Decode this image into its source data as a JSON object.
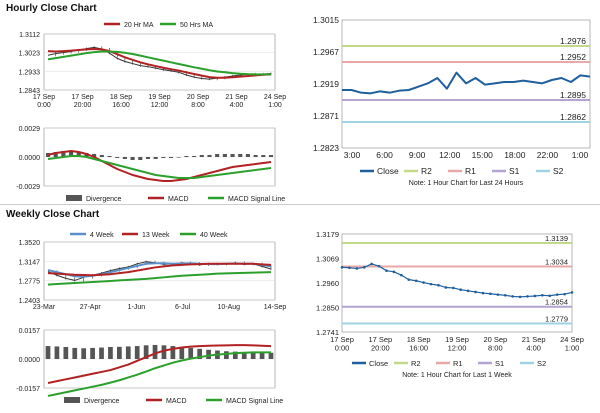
{
  "sections": {
    "hourly_title": "Hourly Close Chart",
    "weekly_title": "Weekly Close Chart"
  },
  "colors": {
    "ma_red": "#b22222",
    "ma_green": "#2ca02c",
    "ma_blue": "#5b8fc8",
    "hist": "#555555",
    "close_blue": "#1f5f9e",
    "r2": "#c3d98a",
    "r1": "#e9a7a7",
    "s1": "#b3a4d1",
    "s2": "#9fd3e3"
  },
  "chart_data": [
    {
      "id": "hourly_price",
      "type": "line",
      "legend": [
        "20 Hr MA",
        "50 Hrs MA"
      ],
      "legend_placement": "top",
      "ylim": [
        1.2843,
        1.3112
      ],
      "y_ticks": [
        "1.3112",
        "1.3023",
        "1.2933",
        "1.2843"
      ],
      "x_ticks": [
        "17 Sep\n0:00",
        "17 Sep\n20:00",
        "18 Sep\n16:00",
        "19 Sep\n12:00",
        "20 Sep\n8:00",
        "21 Sep\n4:00",
        "24 Sep\n1:00"
      ],
      "series": [
        {
          "name": "Close",
          "values": [
            1.301,
            1.3018,
            1.3023,
            1.3028,
            1.3035,
            1.3042,
            1.3048,
            1.304,
            1.302,
            1.2995,
            1.298,
            1.297,
            1.296,
            1.2955,
            1.2948,
            1.294,
            1.2935,
            1.2928,
            1.2915,
            1.2905,
            1.2898,
            1.2895,
            1.29,
            1.2905,
            1.291,
            1.2915,
            1.2918,
            1.292,
            1.292,
            1.2922
          ]
        },
        {
          "name": "20 Hr MA",
          "values": [
            1.303,
            1.3028,
            1.303,
            1.3032,
            1.3035,
            1.3038,
            1.304,
            1.3038,
            1.303,
            1.3015,
            1.3,
            1.2988,
            1.2976,
            1.2966,
            1.2958,
            1.295,
            1.2943,
            1.2936,
            1.2928,
            1.292,
            1.2912,
            1.2905,
            1.2902,
            1.2902,
            1.2904,
            1.2907,
            1.291,
            1.2913,
            1.2916,
            1.2918
          ]
        },
        {
          "name": "50 Hrs MA",
          "values": [
            1.299,
            1.2996,
            1.3002,
            1.3008,
            1.3014,
            1.302,
            1.3025,
            1.3028,
            1.3028,
            1.3026,
            1.3022,
            1.3016,
            1.3008,
            1.3,
            1.2992,
            1.2984,
            1.2976,
            1.2968,
            1.296,
            1.2952,
            1.2945,
            1.2938,
            1.2932,
            1.2928,
            1.2924,
            1.2921,
            1.2919,
            1.2918,
            1.2918,
            1.2918
          ]
        }
      ]
    },
    {
      "id": "hourly_macd",
      "type": "bar",
      "legend": [
        "Divergence",
        "MACD",
        "MACD Signal Line"
      ],
      "legend_placement": "bottom",
      "ylim": [
        -0.0029,
        0.0029
      ],
      "y_ticks": [
        "0.0029",
        "0.0000",
        "-0.0029"
      ],
      "series": [
        {
          "name": "Divergence",
          "values": [
            0.0004,
            0.0005,
            0.0006,
            0.0006,
            0.0005,
            0.0004,
            0.0003,
            0.0002,
            0.0001,
            -0.0001,
            -0.0002,
            -0.0003,
            -0.0003,
            -0.0002,
            -0.0002,
            -0.0001,
            -0.0001,
            0.0,
            0.0001,
            0.0001,
            0.0002,
            0.0002,
            0.0003,
            0.0003,
            0.0003,
            0.0003,
            0.0003,
            0.0002,
            0.0002,
            0.0002
          ]
        },
        {
          "name": "MACD",
          "values": [
            0.0002,
            0.0004,
            0.0005,
            0.0006,
            0.0005,
            0.0003,
            0.0,
            -0.0004,
            -0.0008,
            -0.0012,
            -0.0015,
            -0.0018,
            -0.002,
            -0.0022,
            -0.0023,
            -0.0024,
            -0.0024,
            -0.0023,
            -0.0022,
            -0.002,
            -0.0018,
            -0.0016,
            -0.0014,
            -0.0012,
            -0.001,
            -0.0009,
            -0.0008,
            -0.0007,
            -0.0006,
            -0.0005
          ]
        },
        {
          "name": "MACD Signal Line",
          "values": [
            -0.0002,
            -0.0001,
            0.0,
            0.0001,
            0.0001,
            0.0,
            -0.0002,
            -0.0004,
            -0.0006,
            -0.0008,
            -0.001,
            -0.0012,
            -0.0014,
            -0.0016,
            -0.0018,
            -0.0019,
            -0.002,
            -0.0021,
            -0.0021,
            -0.0021,
            -0.002,
            -0.0019,
            -0.0018,
            -0.0017,
            -0.0016,
            -0.0015,
            -0.0014,
            -0.0013,
            -0.0012,
            -0.0011
          ]
        }
      ]
    },
    {
      "id": "hourly_pivot",
      "type": "line",
      "ylim": [
        1.2823,
        1.3015
      ],
      "y_ticks": [
        "1.3015",
        "1.2967",
        "1.2919",
        "1.2871",
        "1.2823"
      ],
      "x_ticks": [
        "3:00",
        "6:00",
        "9:00",
        "12:00",
        "15:00",
        "18:00",
        "22:00",
        "1:00"
      ],
      "levels": [
        {
          "name": "R2",
          "value": 1.2976,
          "label": "1.2976"
        },
        {
          "name": "R1",
          "value": 1.2952,
          "label": "1.2952"
        },
        {
          "name": "S1",
          "value": 1.2895,
          "label": "1.2895"
        },
        {
          "name": "S2",
          "value": 1.2862,
          "label": "1.2862"
        }
      ],
      "series": [
        {
          "name": "Close",
          "values": [
            1.291,
            1.291,
            1.2906,
            1.2905,
            1.2908,
            1.2906,
            1.2909,
            1.291,
            1.2915,
            1.292,
            1.2928,
            1.2912,
            1.2936,
            1.292,
            1.2928,
            1.2918,
            1.292,
            1.2922,
            1.2922,
            1.2924,
            1.2922,
            1.292,
            1.2925,
            1.2928,
            1.2922,
            1.2932,
            1.293
          ]
        }
      ],
      "legend": [
        "Close",
        "R2",
        "R1",
        "S1",
        "S2"
      ],
      "note": "Note: 1 Hour Chart for Last 24 Hours"
    },
    {
      "id": "weekly_price",
      "type": "line",
      "legend": [
        "4 Week",
        "13 Week",
        "40 Week"
      ],
      "legend_placement": "top",
      "ylim": [
        1.2403,
        1.352
      ],
      "y_ticks": [
        "1.3520",
        "1.3147",
        "1.2775",
        "1.2403"
      ],
      "x_ticks": [
        "23-Mar",
        "27-Apr",
        "1-Jun",
        "6-Jul",
        "10-Aug",
        "14-Sep"
      ],
      "series": [
        {
          "name": "Close",
          "values": [
            1.295,
            1.288,
            1.282,
            1.278,
            1.284,
            1.288,
            1.292,
            1.297,
            1.301,
            1.304,
            1.31,
            1.314,
            1.312,
            1.309,
            1.31,
            1.312,
            1.311,
            1.308,
            1.31,
            1.309,
            1.31,
            1.312,
            1.309,
            1.31,
            1.305,
            1.3
          ]
        },
        {
          "name": "4 Week",
          "values": [
            1.298,
            1.294,
            1.29,
            1.286,
            1.285,
            1.287,
            1.29,
            1.294,
            1.298,
            1.302,
            1.306,
            1.31,
            1.311,
            1.311,
            1.31,
            1.3105,
            1.311,
            1.31,
            1.3095,
            1.3095,
            1.31,
            1.3105,
            1.31,
            1.31,
            1.308,
            1.305
          ]
        },
        {
          "name": "13 Week",
          "values": [
            1.292,
            1.291,
            1.29,
            1.289,
            1.2885,
            1.288,
            1.289,
            1.29,
            1.292,
            1.294,
            1.297,
            1.3,
            1.303,
            1.305,
            1.307,
            1.308,
            1.309,
            1.3095,
            1.31,
            1.31,
            1.31,
            1.31,
            1.31,
            1.31,
            1.309,
            1.308
          ]
        },
        {
          "name": "40 Week",
          "values": [
            1.27,
            1.271,
            1.272,
            1.273,
            1.274,
            1.275,
            1.276,
            1.277,
            1.278,
            1.279,
            1.28,
            1.281,
            1.2825,
            1.284,
            1.2855,
            1.287,
            1.288,
            1.289,
            1.29,
            1.291,
            1.2915,
            1.292,
            1.2925,
            1.293,
            1.2935,
            1.294
          ]
        }
      ]
    },
    {
      "id": "weekly_macd",
      "type": "bar",
      "legend": [
        "Divergence",
        "MACD",
        "MACD Signal Line"
      ],
      "legend_placement": "bottom",
      "ylim": [
        -0.0157,
        0.0157
      ],
      "y_ticks": [
        "0.0157",
        "0.0000",
        "-0.0157"
      ],
      "series": [
        {
          "name": "Divergence",
          "values": [
            0.007,
            0.0068,
            0.0065,
            0.006,
            0.0058,
            0.006,
            0.0062,
            0.0065,
            0.0066,
            0.0068,
            0.007,
            0.0074,
            0.0076,
            0.0074,
            0.007,
            0.0065,
            0.006,
            0.0055,
            0.005,
            0.0046,
            0.0042,
            0.004,
            0.0038,
            0.0036,
            0.0035,
            0.0034
          ]
        },
        {
          "name": "MACD",
          "values": [
            -0.013,
            -0.012,
            -0.011,
            -0.01,
            -0.009,
            -0.008,
            -0.007,
            -0.006,
            -0.0045,
            -0.003,
            -0.001,
            0.001,
            0.003,
            0.0045,
            0.0055,
            0.0062,
            0.0067,
            0.007,
            0.0072,
            0.0073,
            0.0074,
            0.0075,
            0.0075,
            0.0074,
            0.0072,
            0.007
          ]
        },
        {
          "name": "MACD Signal Line",
          "values": [
            -0.02,
            -0.019,
            -0.018,
            -0.017,
            -0.016,
            -0.015,
            -0.014,
            -0.0128,
            -0.0115,
            -0.01,
            -0.0085,
            -0.0068,
            -0.005,
            -0.0035,
            -0.002,
            -0.0008,
            0.0002,
            0.001,
            0.0018,
            0.0024,
            0.0028,
            0.0032,
            0.0034,
            0.0036,
            0.0036,
            0.0036
          ]
        }
      ]
    },
    {
      "id": "weekly_pivot",
      "type": "line",
      "ylim": [
        1.2741,
        1.3179
      ],
      "y_ticks": [
        "1.3179",
        "1.3069",
        "1.2960",
        "1.2850",
        "1.2741"
      ],
      "x_ticks": [
        "17 Sep\n0:00",
        "17 Sep\n20:00",
        "18 Sep\n16:00",
        "19 Sep\n12:00",
        "20 Sep\n8:00",
        "21 Sep\n4:00",
        "24 Sep\n1:00"
      ],
      "levels": [
        {
          "name": "R2",
          "value": 1.3139,
          "label": "1.3139"
        },
        {
          "name": "R1",
          "value": 1.3034,
          "label": "1.3034"
        },
        {
          "name": "S1",
          "value": 1.2854,
          "label": "1.2854"
        },
        {
          "name": "S2",
          "value": 1.2779,
          "label": "1.2779"
        }
      ],
      "series": [
        {
          "name": "Close",
          "values": [
            1.303,
            1.3028,
            1.3025,
            1.303,
            1.3045,
            1.3035,
            1.3015,
            1.301,
            1.2995,
            1.2975,
            1.297,
            1.2962,
            1.2955,
            1.295,
            1.294,
            1.2938,
            1.293,
            1.2925,
            1.292,
            1.2915,
            1.2912,
            1.2908,
            1.2905,
            1.29,
            1.2898,
            1.29,
            1.2902,
            1.2905,
            1.2903,
            1.2908,
            1.291,
            1.2918
          ]
        }
      ],
      "legend": [
        "Close",
        "R2",
        "R1",
        "S1",
        "S2"
      ],
      "note": "Note: 1 Hour Chart for Last 1 Week"
    }
  ]
}
